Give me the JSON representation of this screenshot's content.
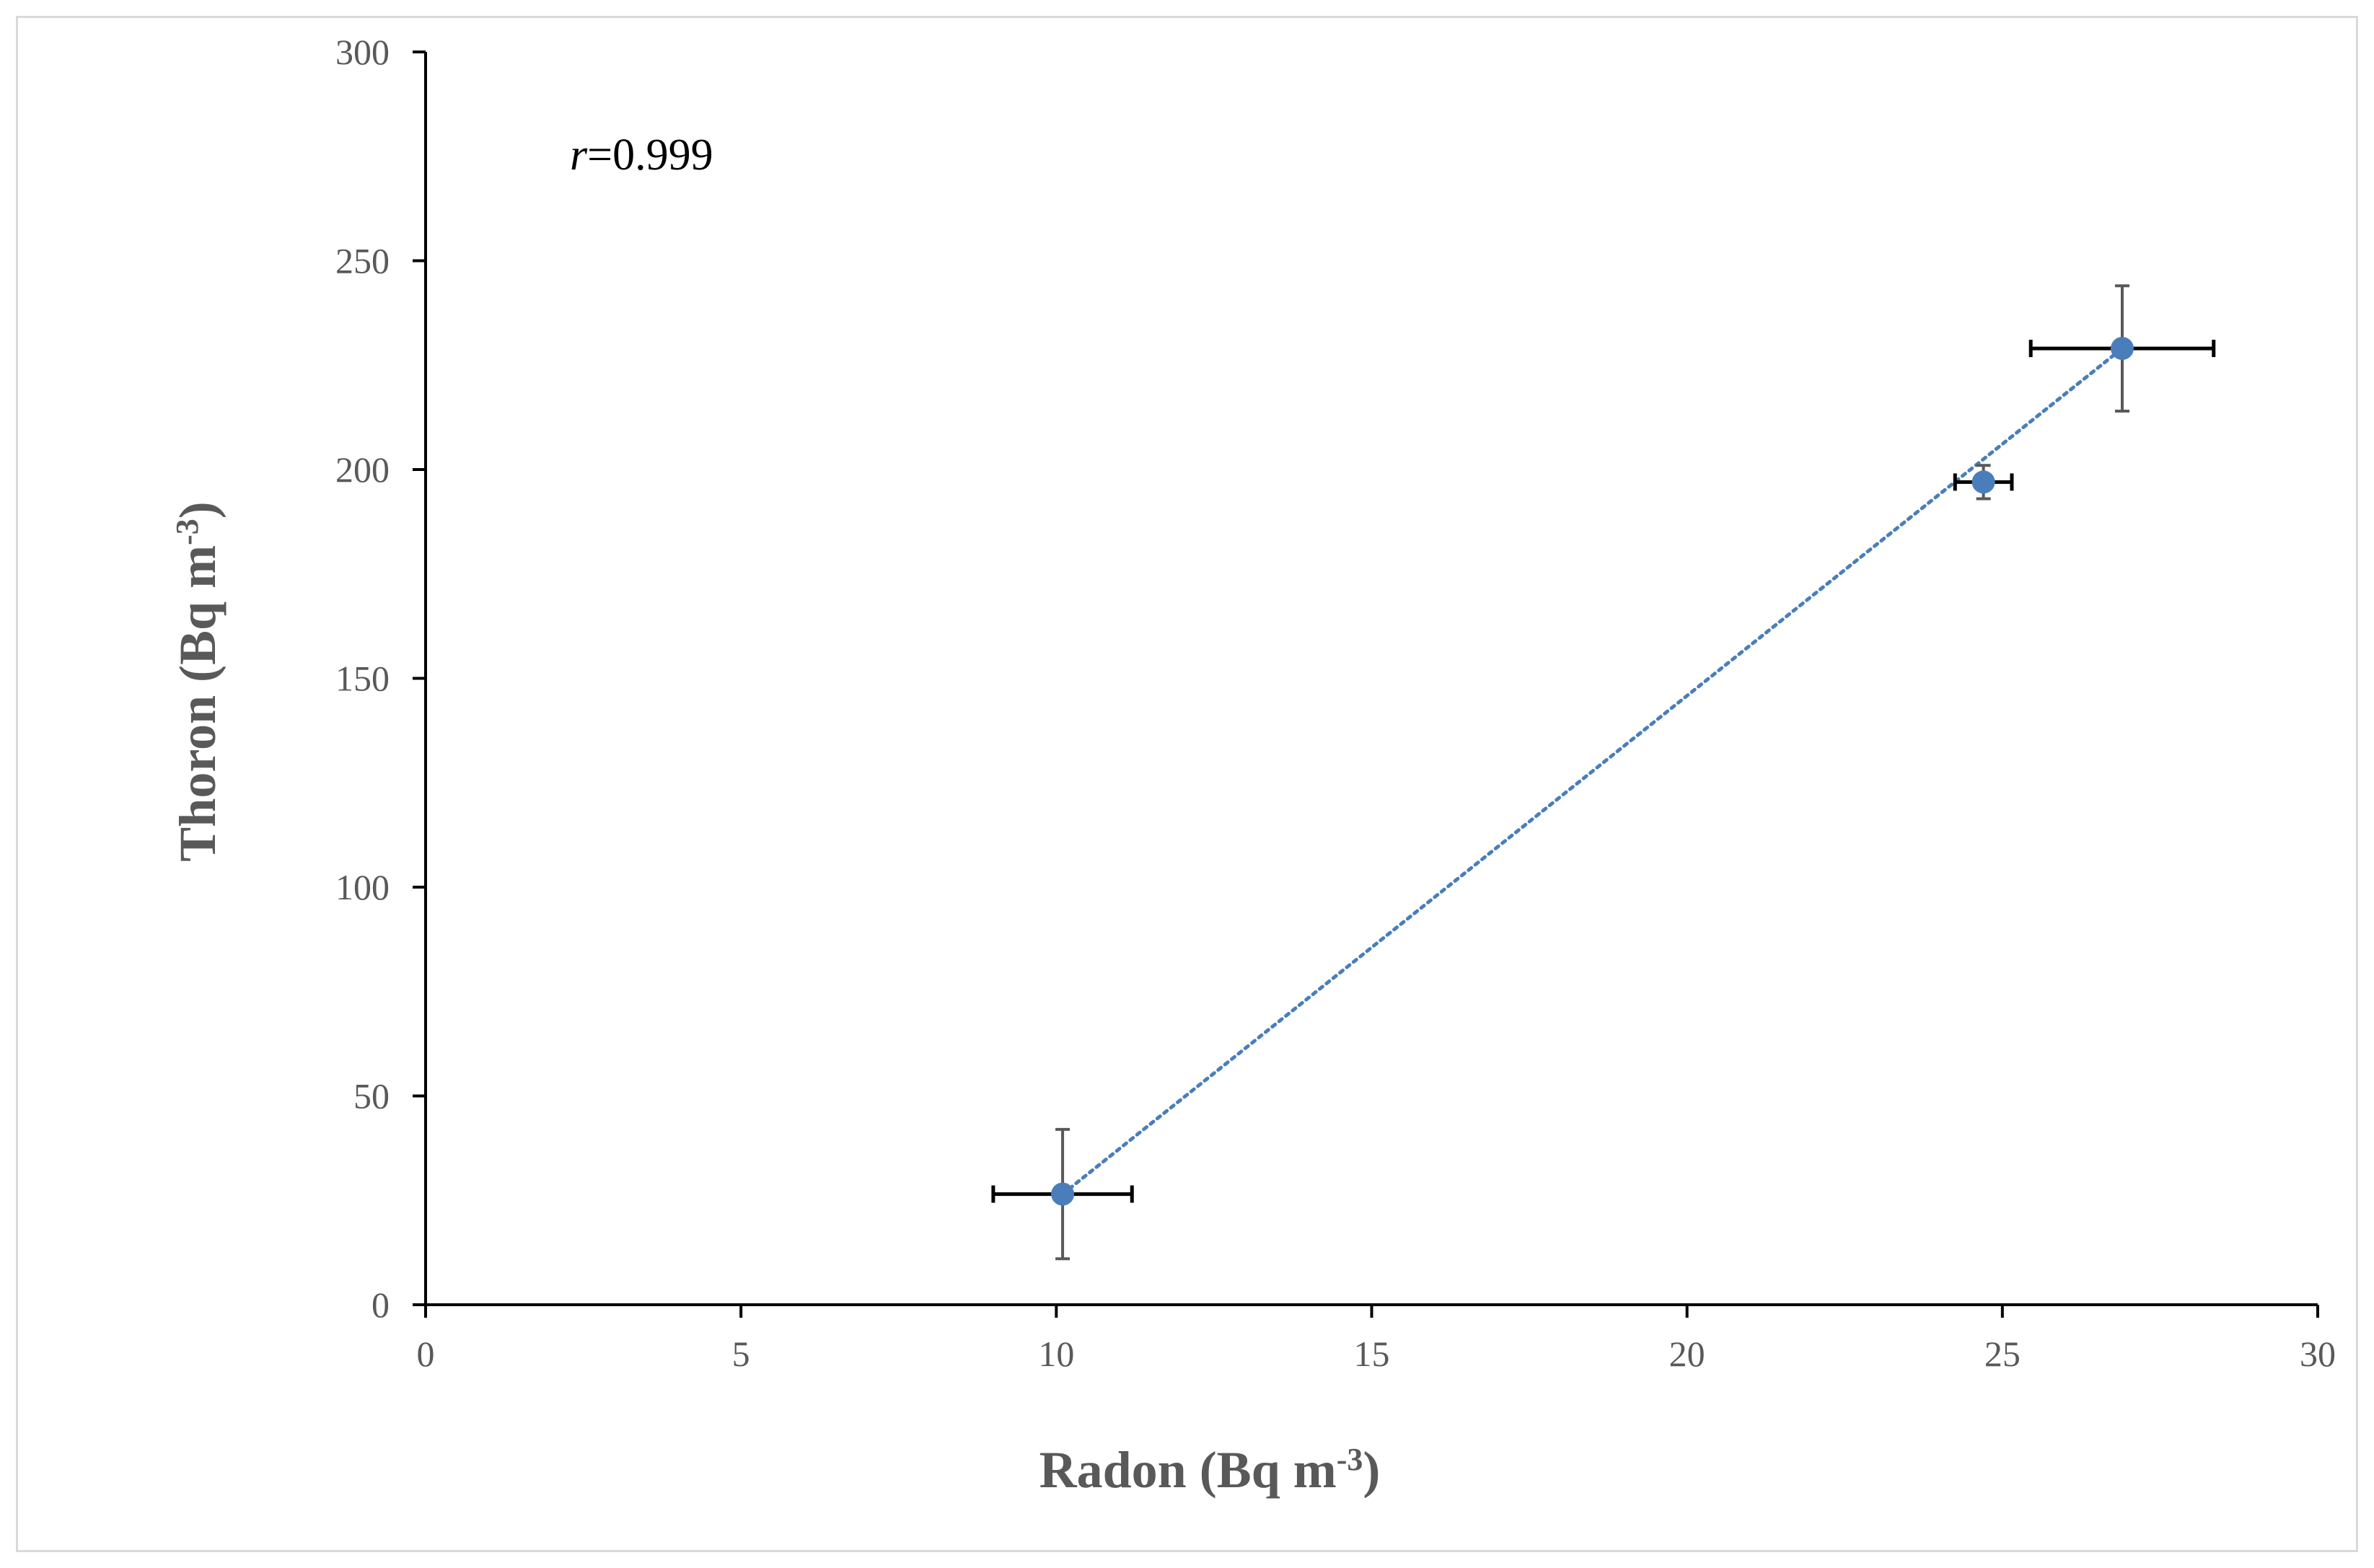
{
  "chart_data": {
    "type": "scatter",
    "x": [
      10.1,
      24.7,
      26.9
    ],
    "y": [
      26.5,
      197,
      229
    ],
    "x_err": [
      1.1,
      0.45,
      1.45
    ],
    "y_err": [
      15.5,
      4,
      15
    ],
    "xlabel": {
      "main": "Radon (Bq m",
      "sup": "-3",
      "close": ")"
    },
    "ylabel": {
      "main": "Thoron (Bq m",
      "sup": "-3",
      "close": ")"
    },
    "xlim": [
      0,
      30
    ],
    "ylim": [
      0,
      300
    ],
    "xticks": [
      0,
      5,
      10,
      15,
      20,
      25,
      30
    ],
    "yticks": [
      0,
      50,
      100,
      150,
      200,
      250,
      300
    ],
    "annotation": {
      "var": "r",
      "text": "=0.999"
    },
    "trendline": {
      "style": "dotted",
      "from": [
        10.1,
        26.5
      ],
      "to": [
        26.9,
        229
      ]
    },
    "grid": false,
    "legend": "none",
    "colors": {
      "marker": "#4a7ebb",
      "trendline": "#4a7ebb",
      "x_errorbar": "#000000",
      "y_errorbar": "#595959",
      "axis": "#000000",
      "text": "#595959"
    }
  }
}
